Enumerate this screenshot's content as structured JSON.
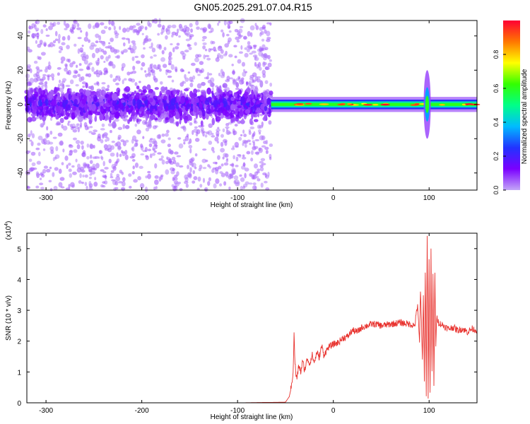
{
  "title": "GN05.2025.291.07.04.R15",
  "chart_data": [
    {
      "type": "heatmap",
      "title": "GN05.2025.291.07.04.R15",
      "xlabel": "Height of straight line (km)",
      "ylabel": "Frequency (Hz)",
      "xlim": [
        -320,
        150
      ],
      "ylim": [
        -50,
        49
      ],
      "xticks": [
        -300,
        -200,
        -100,
        0,
        100
      ],
      "yticks": [
        -40,
        -20,
        0,
        20,
        40
      ],
      "colorbar": {
        "label": "Normalized spectral amplitude",
        "range": [
          0.0,
          1.0
        ],
        "ticks": [
          0.0,
          0.2,
          0.4,
          0.6,
          0.8
        ],
        "colormap": [
          "#c3a6f7",
          "#7b00ff",
          "#2233ff",
          "#00bbff",
          "#00ff88",
          "#33ff00",
          "#ffff00",
          "#ff7700",
          "#ff0033"
        ]
      },
      "features": [
        {
          "x_range": [
            -320,
            -65
          ],
          "freq_center": 0,
          "freq_spread": 8,
          "amplitude": 0.15,
          "note": "noisy broadband band with scattered speckle up to +/-50 Hz"
        },
        {
          "x_range": [
            -65,
            150
          ],
          "freq_center": 0,
          "freq_spread": 2,
          "amplitude": 0.9,
          "note": "narrow coherent line at 0 Hz"
        },
        {
          "x_range": [
            93,
            103
          ],
          "freq_center": 0,
          "freq_spread": 20,
          "amplitude": 0.6,
          "note": "vertical spread near 100 km"
        }
      ]
    },
    {
      "type": "line",
      "xlabel": "Height of straight line (km)",
      "ylabel": "SNR (10 * v/v)",
      "y_multiplier": "(x10",
      "y_multiplier_exp": "4",
      "y_multiplier_close": ")",
      "xlim": [
        -320,
        150
      ],
      "ylim": [
        0,
        5.5
      ],
      "xticks": [
        -300,
        -200,
        -100,
        0,
        100
      ],
      "yticks": [
        0,
        1,
        2,
        3,
        4,
        5
      ],
      "series": [
        {
          "name": "SNR",
          "color": "#e8322e",
          "x": [
            -320,
            -100,
            -50,
            -46,
            -44,
            -42,
            -41,
            -40,
            -39,
            -38,
            -36,
            -34,
            -32,
            -30,
            -27,
            -25,
            -22,
            -20,
            -17,
            -15,
            -12,
            -10,
            -5,
            0,
            5,
            10,
            15,
            20,
            25,
            30,
            35,
            40,
            45,
            50,
            60,
            70,
            80,
            85,
            88,
            90,
            91,
            92,
            93,
            94,
            95,
            96,
            97,
            98,
            99,
            100,
            101,
            102,
            103,
            104,
            105,
            106,
            107,
            108,
            110,
            115,
            120,
            125,
            130,
            135,
            140,
            145,
            150
          ],
          "y": [
            0.0,
            0.0,
            0.02,
            0.2,
            0.5,
            1.0,
            2.2,
            1.3,
            0.9,
            0.8,
            1.2,
            1.0,
            1.35,
            1.05,
            1.45,
            1.25,
            1.55,
            1.3,
            1.65,
            1.45,
            1.85,
            1.55,
            1.8,
            1.9,
            1.95,
            2.1,
            2.15,
            2.35,
            2.3,
            2.45,
            2.5,
            2.55,
            2.55,
            2.5,
            2.55,
            2.6,
            2.55,
            2.5,
            3.2,
            1.9,
            3.6,
            2.7,
            1.3,
            3.5,
            0.8,
            4.3,
            0.3,
            5.4,
            0.2,
            4.6,
            0.4,
            4.9,
            1.0,
            4.1,
            0.5,
            4.3,
            1.8,
            2.8,
            2.6,
            2.5,
            2.4,
            2.45,
            2.35,
            2.4,
            2.3,
            2.4,
            2.35
          ]
        }
      ]
    }
  ]
}
